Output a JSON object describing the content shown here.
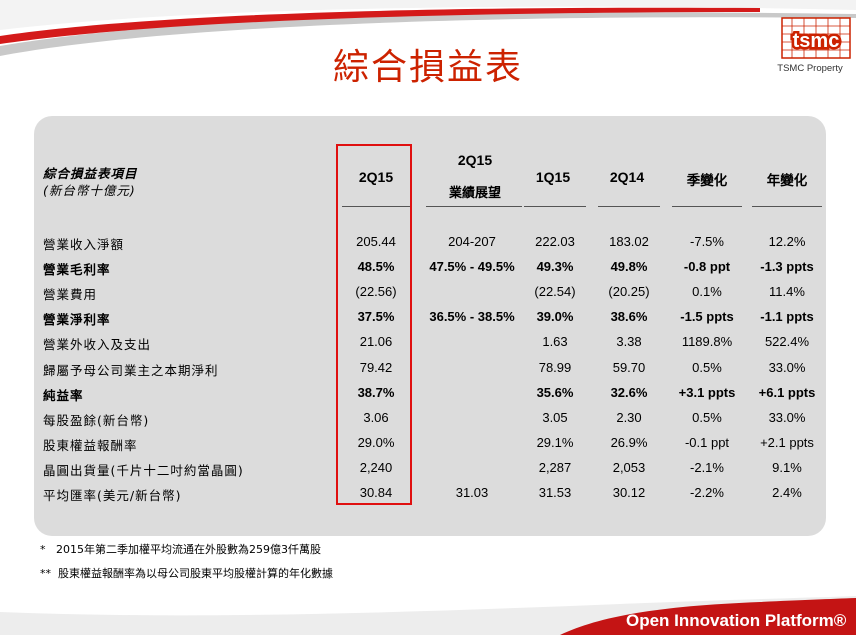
{
  "slide": {
    "title": "綜合損益表",
    "logo_text": "tsmc",
    "logo_caption": "TSMC Property",
    "brand_red": "#cc2200",
    "highlight_color": "#e01010",
    "banner_text": "Open Innovation Platform®"
  },
  "table": {
    "title": "綜合損益表項目",
    "unit": "(新台幣十億元)",
    "columns": [
      {
        "line1": "2Q15",
        "line2": ""
      },
      {
        "line1": "2Q15",
        "line2": "業績展望"
      },
      {
        "line1": "1Q15",
        "line2": ""
      },
      {
        "line1": "2Q14",
        "line2": ""
      },
      {
        "line1": "季變化",
        "line2": ""
      },
      {
        "line1": "年變化",
        "line2": ""
      }
    ],
    "rows": [
      {
        "label": "營業收入淨額",
        "bold": false,
        "cells": [
          "205.44",
          "204-207",
          "222.03",
          "183.02",
          "-7.5%",
          "12.2%"
        ]
      },
      {
        "label": "營業毛利率",
        "bold": true,
        "cells": [
          "48.5%",
          "47.5% - 49.5%",
          "49.3%",
          "49.8%",
          "-0.8 ppt",
          "-1.3 ppts"
        ]
      },
      {
        "label": "營業費用",
        "bold": false,
        "cells": [
          "(22.56)",
          "",
          "(22.54)",
          "(20.25)",
          "0.1%",
          "11.4%"
        ]
      },
      {
        "label": "營業淨利率",
        "bold": true,
        "cells": [
          "37.5%",
          "36.5% - 38.5%",
          "39.0%",
          "38.6%",
          "-1.5 ppts",
          "-1.1 ppts"
        ]
      },
      {
        "label": "營業外收入及支出",
        "bold": false,
        "cells": [
          "21.06",
          "",
          "1.63",
          "3.38",
          "1189.8%",
          "522.4%"
        ]
      },
      {
        "label": "歸屬予母公司業主之本期淨利",
        "bold": false,
        "cells": [
          "79.42",
          "",
          "78.99",
          "59.70",
          "0.5%",
          "33.0%"
        ]
      },
      {
        "label": "純益率",
        "bold": true,
        "cells": [
          "38.7%",
          "",
          "35.6%",
          "32.6%",
          "+3.1 ppts",
          "+6.1 ppts"
        ]
      },
      {
        "label": "每股盈餘(新台幣)",
        "bold": false,
        "cells": [
          "3.06",
          "",
          "3.05",
          "2.30",
          "0.5%",
          "33.0%"
        ]
      },
      {
        "label": "股東權益報酬率",
        "bold": false,
        "cells": [
          "29.0%",
          "",
          "29.1%",
          "26.9%",
          "-0.1 ppt",
          "+2.1 ppts"
        ]
      },
      {
        "label": "晶圓出貨量(千片十二吋約當晶圓)",
        "bold": false,
        "cells": [
          "2,240",
          "",
          "2,287",
          "2,053",
          "-2.1%",
          "9.1%"
        ]
      },
      {
        "label": "平均匯率(美元/新台幣)",
        "bold": false,
        "cells": [
          "30.84",
          "31.03",
          "31.53",
          "30.12",
          "-2.2%",
          "2.4%"
        ]
      }
    ]
  },
  "footnotes": [
    {
      "mark": "*",
      "text": "2015年第二季加權平均流通在外股數為259億3仟萬股"
    },
    {
      "mark": "**",
      "text": "股東權益報酬率為以母公司股東平均股權計算的年化數據"
    }
  ]
}
